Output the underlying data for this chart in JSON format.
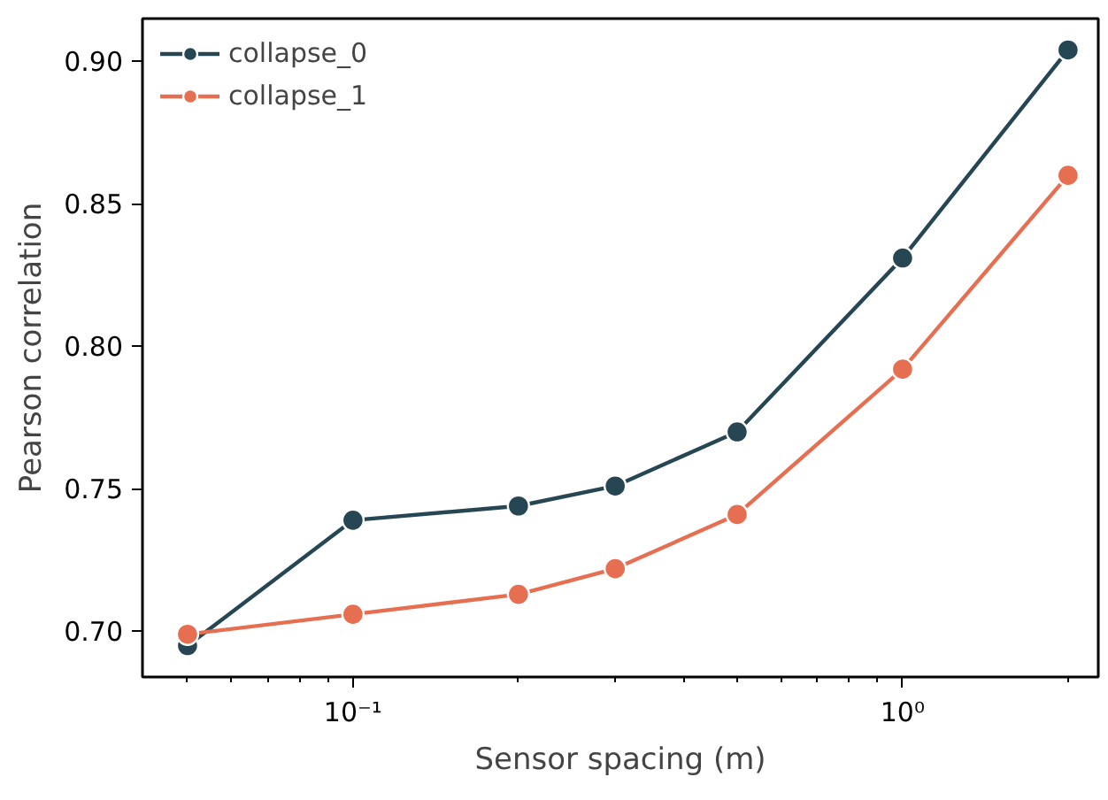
{
  "chart_data": {
    "type": "line",
    "xlabel": "Sensor spacing (m)",
    "ylabel": "Pearson correlation",
    "x": [
      0.05,
      0.1,
      0.2,
      0.3,
      0.5,
      1,
      2
    ],
    "series": [
      {
        "name": "collapse_0",
        "color": "#264653",
        "values": [
          0.695,
          0.739,
          0.744,
          0.751,
          0.77,
          0.831,
          0.904
        ]
      },
      {
        "name": "collapse_1",
        "color": "#e76f51",
        "values": [
          0.699,
          0.706,
          0.713,
          0.722,
          0.741,
          0.792,
          0.86
        ]
      }
    ],
    "log": "x",
    "xlim": [
      0.0414,
      2.27
    ],
    "ylim": [
      0.684,
      0.915
    ],
    "xticks": [
      {
        "value": 0.05,
        "label": null
      },
      {
        "value": 0.06,
        "label": null
      },
      {
        "value": 0.07,
        "label": null
      },
      {
        "value": 0.08,
        "label": null
      },
      {
        "value": 0.09,
        "label": null
      },
      {
        "value": 0.1,
        "label": "10⁻¹"
      },
      {
        "value": 0.2,
        "label": null
      },
      {
        "value": 0.3,
        "label": null
      },
      {
        "value": 0.4,
        "label": null
      },
      {
        "value": 0.5,
        "label": null
      },
      {
        "value": 0.6,
        "label": null
      },
      {
        "value": 0.7,
        "label": null
      },
      {
        "value": 0.8,
        "label": null
      },
      {
        "value": 0.9,
        "label": null
      },
      {
        "value": 1,
        "label": "10⁰"
      },
      {
        "value": 2,
        "label": null
      }
    ],
    "yticks": [
      {
        "value": 0.7,
        "label": "0.70"
      },
      {
        "value": 0.75,
        "label": "0.75"
      },
      {
        "value": 0.8,
        "label": "0.80"
      },
      {
        "value": 0.85,
        "label": "0.85"
      },
      {
        "value": 0.9,
        "label": "0.90"
      }
    ],
    "grid": false,
    "legend": "top left",
    "marker": "circle",
    "line_style": "solid"
  }
}
